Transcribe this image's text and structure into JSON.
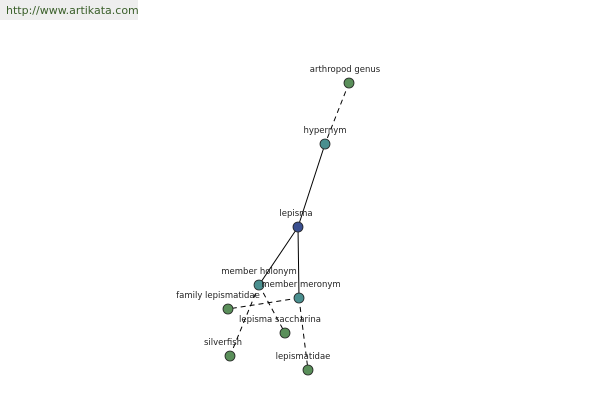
{
  "header": {
    "url": "http://www.artikata.com"
  },
  "nodes": [
    {
      "label": "arthropod genus"
    },
    {
      "label": "hypernym"
    },
    {
      "label": "lepisma"
    },
    {
      "label": "member holonym"
    },
    {
      "label": "member meronym"
    },
    {
      "label": "family lepismatidae"
    },
    {
      "label": "lepisma saccharina"
    },
    {
      "label": "silverfish"
    },
    {
      "label": "lepismatidae"
    }
  ]
}
